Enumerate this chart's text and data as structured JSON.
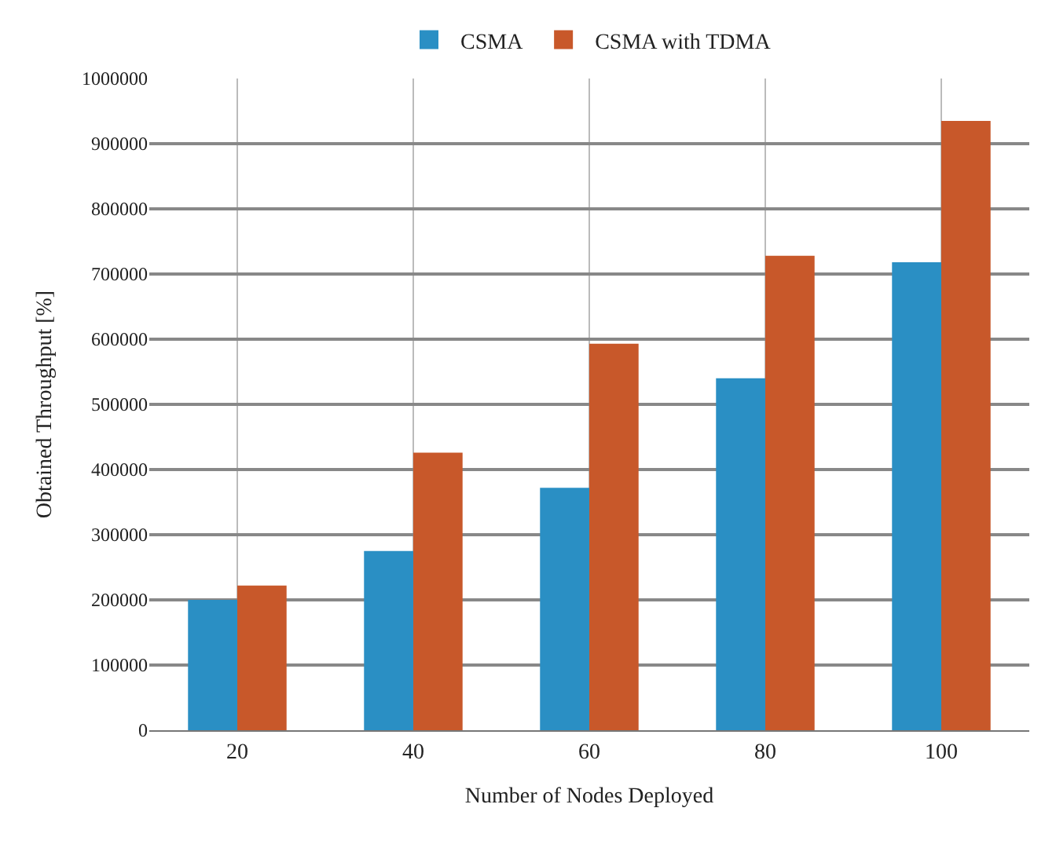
{
  "chart_data": {
    "type": "bar",
    "xlabel": "Number of Nodes Deployed",
    "ylabel": "Obtained Throughput [%]",
    "categories": [
      "20",
      "40",
      "60",
      "80",
      "100"
    ],
    "series": [
      {
        "name": "CSMA",
        "color": "#2a8fc4",
        "values": [
          200000,
          275000,
          372000,
          540000,
          718000
        ]
      },
      {
        "name": "CSMA with TDMA",
        "color": "#c8582a",
        "values": [
          222000,
          426000,
          593000,
          728000,
          935000
        ]
      }
    ],
    "ylim": [
      0,
      1000000
    ],
    "yticks": [
      0,
      100000,
      200000,
      300000,
      400000,
      500000,
      600000,
      700000,
      800000,
      900000,
      1000000
    ],
    "grid": true,
    "legend": "top"
  }
}
